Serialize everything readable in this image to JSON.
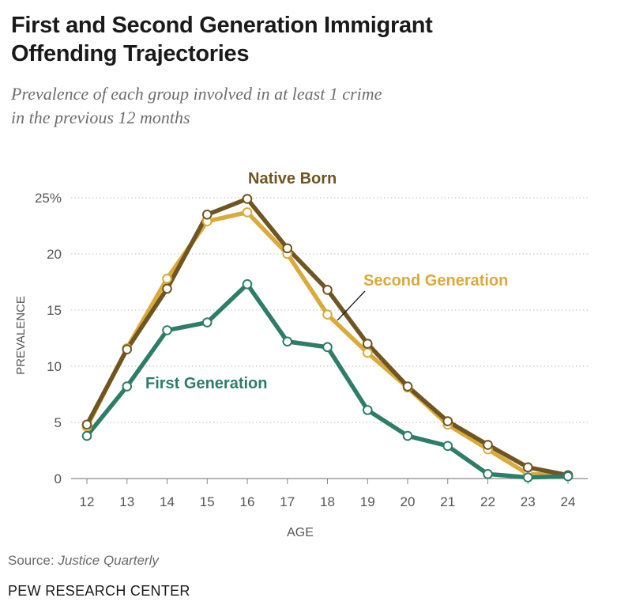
{
  "title_line1": "First and Second Generation Immigrant",
  "title_line2": "Offending Trajectories",
  "subtitle_line1": "Prevalence of each group involved in at least 1 crime",
  "subtitle_line2": "in the previous 12 months",
  "source_label": "Source:",
  "source_name": "Justice Quarterly",
  "brand": "PEW RESEARCH CENTER",
  "chart_data": {
    "type": "line",
    "xlabel": "AGE",
    "ylabel": "PREVALENCE",
    "x": [
      12,
      13,
      14,
      15,
      16,
      17,
      18,
      19,
      20,
      21,
      22,
      23,
      24
    ],
    "ylim": [
      0,
      25
    ],
    "yticks": [
      0,
      5,
      10,
      15,
      20,
      25
    ],
    "ytick_labels": [
      "0",
      "5",
      "10",
      "15",
      "20",
      "25%"
    ],
    "grid": true,
    "series": [
      {
        "name": "Second Generation",
        "color": "#d9aa3c",
        "values": [
          4.6,
          11.6,
          17.8,
          22.9,
          23.7,
          20.0,
          14.6,
          11.2,
          8.1,
          4.8,
          2.6,
          0.4,
          0.3
        ]
      },
      {
        "name": "Native Born",
        "color": "#6e5522",
        "values": [
          4.8,
          11.5,
          16.9,
          23.5,
          24.9,
          20.5,
          16.8,
          12.0,
          8.2,
          5.1,
          3.0,
          1.0,
          0.3
        ]
      },
      {
        "name": "First Generation",
        "color": "#2e7d68",
        "values": [
          3.8,
          8.2,
          13.2,
          13.9,
          17.3,
          12.2,
          11.7,
          6.1,
          3.8,
          2.9,
          0.4,
          0.1,
          0.2
        ]
      }
    ],
    "annotations": [
      {
        "text": "Native Born",
        "series": "Native Born"
      },
      {
        "text": "Second Generation",
        "series": "Second Generation"
      },
      {
        "text": "First Generation",
        "series": "First Generation"
      }
    ]
  }
}
